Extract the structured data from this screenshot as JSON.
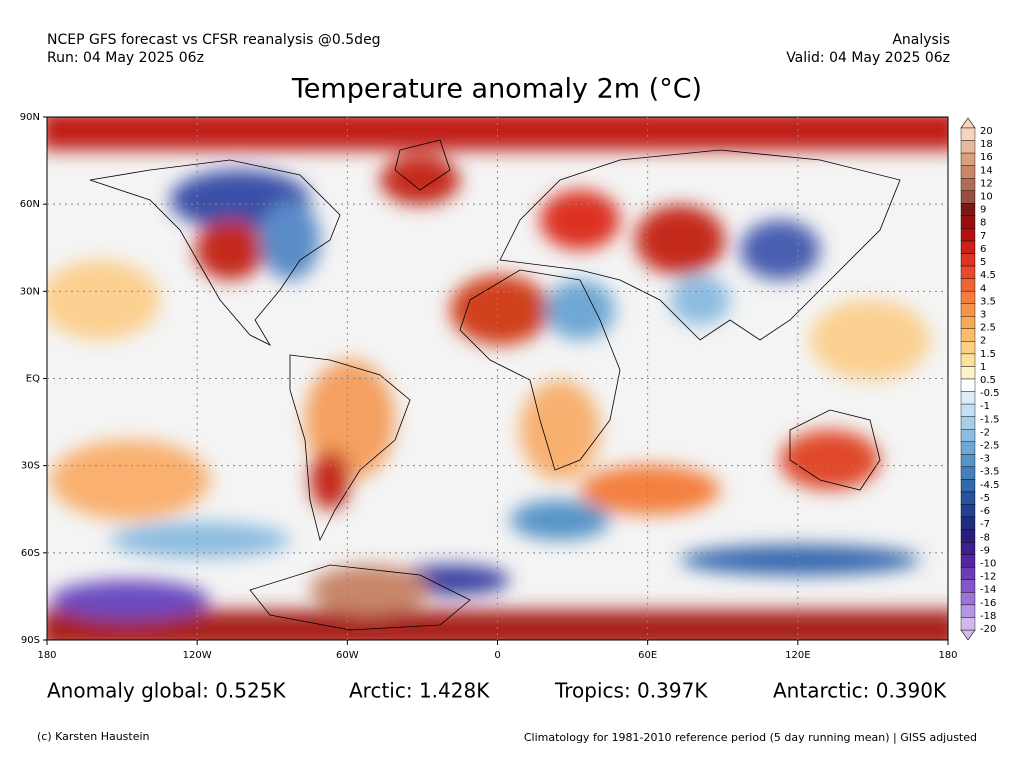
{
  "header": {
    "left_line1": "NCEP GFS forecast vs CFSR reanalysis @0.5deg",
    "left_line2": "Run: 04 May 2025 06z",
    "right_line1": "Analysis",
    "right_line2": "Valid: 04 May 2025 06z",
    "title": "Temperature anomaly 2m (°C)"
  },
  "map": {
    "lat_ticks": [
      {
        "value": 90,
        "label": "90N"
      },
      {
        "value": 60,
        "label": "60N"
      },
      {
        "value": 30,
        "label": "30N"
      },
      {
        "value": 0,
        "label": "EQ"
      },
      {
        "value": -30,
        "label": "30S"
      },
      {
        "value": -60,
        "label": "60S"
      },
      {
        "value": -90,
        "label": "90S"
      }
    ],
    "lon_ticks": [
      {
        "value": -180,
        "label": "180"
      },
      {
        "value": -120,
        "label": "120W"
      },
      {
        "value": -60,
        "label": "60W"
      },
      {
        "value": 0,
        "label": "0"
      },
      {
        "value": 60,
        "label": "60E"
      },
      {
        "value": 120,
        "label": "120E"
      },
      {
        "value": 180,
        "label": "180"
      }
    ]
  },
  "colorbar": {
    "labels": [
      20,
      18,
      16,
      14,
      12,
      10,
      9,
      8,
      7,
      6,
      5,
      4.5,
      4,
      3.5,
      3,
      2.5,
      2,
      1.5,
      1,
      0.5,
      -0.5,
      -1,
      -1.5,
      -2,
      -2.5,
      -3,
      -3.5,
      -4.5,
      -5,
      -6,
      -7,
      -8,
      -9,
      -10,
      -12,
      -14,
      -16,
      -18,
      -20
    ],
    "colors": [
      "#f5d5c0",
      "#e8b89c",
      "#d9a080",
      "#c8866a",
      "#b06a55",
      "#984f40",
      "#7a1818",
      "#9a0e0e",
      "#b51010",
      "#cc1f1a",
      "#dd3322",
      "#e84a2a",
      "#ef6432",
      "#f47d3c",
      "#f7944a",
      "#f9a95a",
      "#fbbd6c",
      "#fcd080",
      "#fde39a",
      "#fef3c8",
      "#ffffff",
      "#dcecf7",
      "#c4def2",
      "#a8cde9",
      "#8cbce0",
      "#70a8d4",
      "#5894c8",
      "#447fbc",
      "#3468ae",
      "#27529e",
      "#22408e",
      "#1f2f80",
      "#2a1f78",
      "#3c1f88",
      "#5228a0",
      "#6a3cb8",
      "#8256c8",
      "#9c74d6",
      "#b696e2",
      "#d0baee"
    ]
  },
  "stats": {
    "global": "Anomaly global: 0.525K",
    "arctic": "Arctic: 1.428K",
    "tropics": "Tropics: 0.397K",
    "antarctic": "Antarctic: 0.390K"
  },
  "footer": {
    "left": "(c) Karsten Haustein",
    "right": "Climatology for 1981-2010 reference period (5 day running mean) | GISS adjusted"
  }
}
